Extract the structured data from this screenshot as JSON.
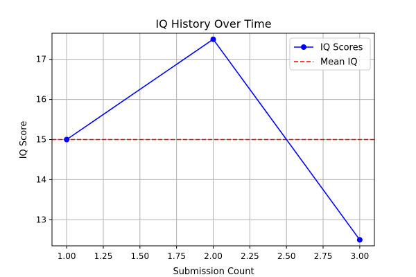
{
  "chart_data": {
    "type": "line",
    "title": "IQ History Over Time",
    "xlabel": "Submission Count",
    "ylabel": "IQ Score",
    "xlim": [
      0.9,
      3.1
    ],
    "ylim": [
      12.35,
      17.65
    ],
    "x_ticks": [
      1.0,
      1.25,
      1.5,
      1.75,
      2.0,
      2.25,
      2.5,
      2.75,
      3.0
    ],
    "x_tick_labels": [
      "1.00",
      "1.25",
      "1.50",
      "1.75",
      "2.00",
      "2.25",
      "2.50",
      "2.75",
      "3.00"
    ],
    "y_ticks": [
      13,
      14,
      15,
      16,
      17
    ],
    "y_tick_labels": [
      "13",
      "14",
      "15",
      "16",
      "17"
    ],
    "grid": true,
    "legend_position": "top-right",
    "series": [
      {
        "name": "IQ Scores",
        "x": [
          1.0,
          2.0,
          3.0
        ],
        "values": [
          15.0,
          17.5,
          12.5
        ],
        "color": "#0000ff",
        "marker": "circle",
        "style": "solid"
      }
    ],
    "reference_lines": [
      {
        "name": "Mean IQ",
        "orientation": "horizontal",
        "value": 15.0,
        "color": "#ff0000",
        "style": "dashed"
      }
    ]
  }
}
